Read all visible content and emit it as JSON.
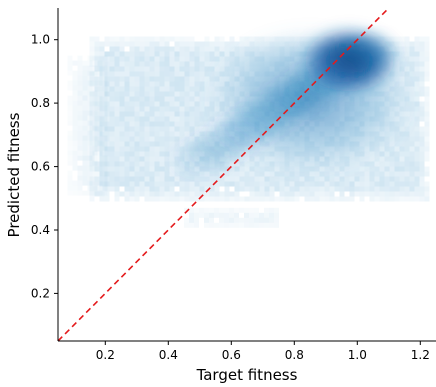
{
  "chart_data": {
    "type": "heatmap",
    "subtype": "2d-histogram-density-scatter",
    "title": "",
    "xlabel": "Target fitness",
    "ylabel": "Predicted fitness",
    "xlim": [
      0.05,
      1.25
    ],
    "ylim": [
      0.05,
      1.1
    ],
    "x_ticks": [
      0.2,
      0.4,
      0.6,
      0.8,
      1.0,
      1.2
    ],
    "x_tick_labels": [
      "0.2",
      "0.4",
      "0.6",
      "0.8",
      "1.0",
      "1.2"
    ],
    "y_ticks": [
      0.2,
      0.4,
      0.6,
      0.8,
      1.0
    ],
    "y_tick_labels": [
      "0.2",
      "0.4",
      "0.6",
      "0.8",
      "1.0"
    ],
    "grid": false,
    "colormap": "Blues",
    "density_regions": [
      {
        "x_range": [
          0.15,
          1.22
        ],
        "y_range": [
          0.5,
          1.01
        ],
        "density": 0.2
      },
      {
        "x_range": [
          0.08,
          0.2
        ],
        "y_range": [
          0.52,
          0.95
        ],
        "density": 0.1
      },
      {
        "x_range": [
          0.45,
          0.75
        ],
        "y_range": [
          0.42,
          0.47
        ],
        "density": 0.15
      },
      {
        "x_range": [
          0.55,
          1.15
        ],
        "y_range": [
          0.6,
          1.02
        ],
        "density": 0.45
      },
      {
        "x_range": [
          0.85,
          1.1
        ],
        "y_range": [
          0.85,
          1.02
        ],
        "density": 0.95
      }
    ],
    "reference_line": {
      "style": "dashed",
      "color": "#e41a1c",
      "x": [
        0.05,
        1.1
      ],
      "y": [
        0.05,
        1.1
      ]
    },
    "colors": {
      "low": "#deebf7",
      "mid": "#6baed6",
      "high": "#08519c"
    }
  }
}
